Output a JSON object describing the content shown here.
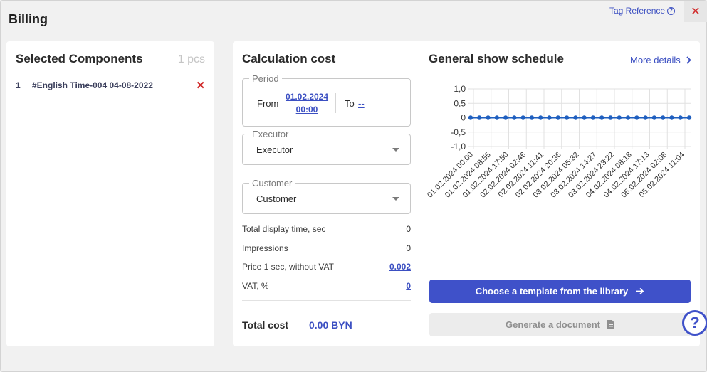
{
  "window": {
    "title": "Billing",
    "tag_reference": "Tag Reference",
    "close_glyph": "✕"
  },
  "selected_components": {
    "title": "Selected Components",
    "count": "1 pcs",
    "items": [
      {
        "index": "1",
        "name": "#English Time-004 04-08-2022"
      }
    ]
  },
  "calculation": {
    "title": "Calculation cost",
    "period": {
      "legend": "Period",
      "from_label": "From",
      "from_date": "01.02.2024",
      "from_time": "00:00",
      "to_label": "To",
      "to_value": "--"
    },
    "executor": {
      "legend": "Executor",
      "value": "Executor"
    },
    "customer": {
      "legend": "Customer",
      "value": "Customer"
    },
    "stats": [
      {
        "label": "Total display time, sec",
        "value": "0"
      },
      {
        "label": "Impressions",
        "value": "0"
      },
      {
        "label": "Price 1 sec, without VAT",
        "value": "0.002"
      },
      {
        "label": "VAT, %",
        "value": "0"
      }
    ],
    "total_label": "Total cost",
    "total_value": "0.00 BYN"
  },
  "schedule": {
    "title": "General show schedule",
    "more_details": "More details",
    "choose_template": "Choose a template from the library",
    "generate_document": "Generate a document"
  },
  "chart_data": {
    "type": "line",
    "y_ticks": [
      "1,0",
      "0,5",
      "0",
      "-0,5",
      "-1,0"
    ],
    "ylim": [
      -1.0,
      1.0
    ],
    "grid": true,
    "x_tick_labels": [
      "01.02.2024 00:00",
      "01.02.2024 08:55",
      "01.02.2024 17:50",
      "02.02.2024 02:46",
      "02.02.2024 11:41",
      "02.02.2024 20:36",
      "03.02.2024 05:32",
      "03.02.2024 14:27",
      "03.02.2024 23:22",
      "04.02.2024 08:18",
      "04.02.2024 17:13",
      "05.02.2024 02:08",
      "05.02.2024 11:04"
    ],
    "series": [
      {
        "values": [
          0,
          0,
          0,
          0,
          0,
          0,
          0,
          0,
          0,
          0,
          0,
          0,
          0,
          0,
          0,
          0,
          0,
          0,
          0,
          0,
          0,
          0,
          0,
          0,
          0,
          0
        ]
      }
    ],
    "colors": {
      "line": "#1f5fbf"
    }
  }
}
